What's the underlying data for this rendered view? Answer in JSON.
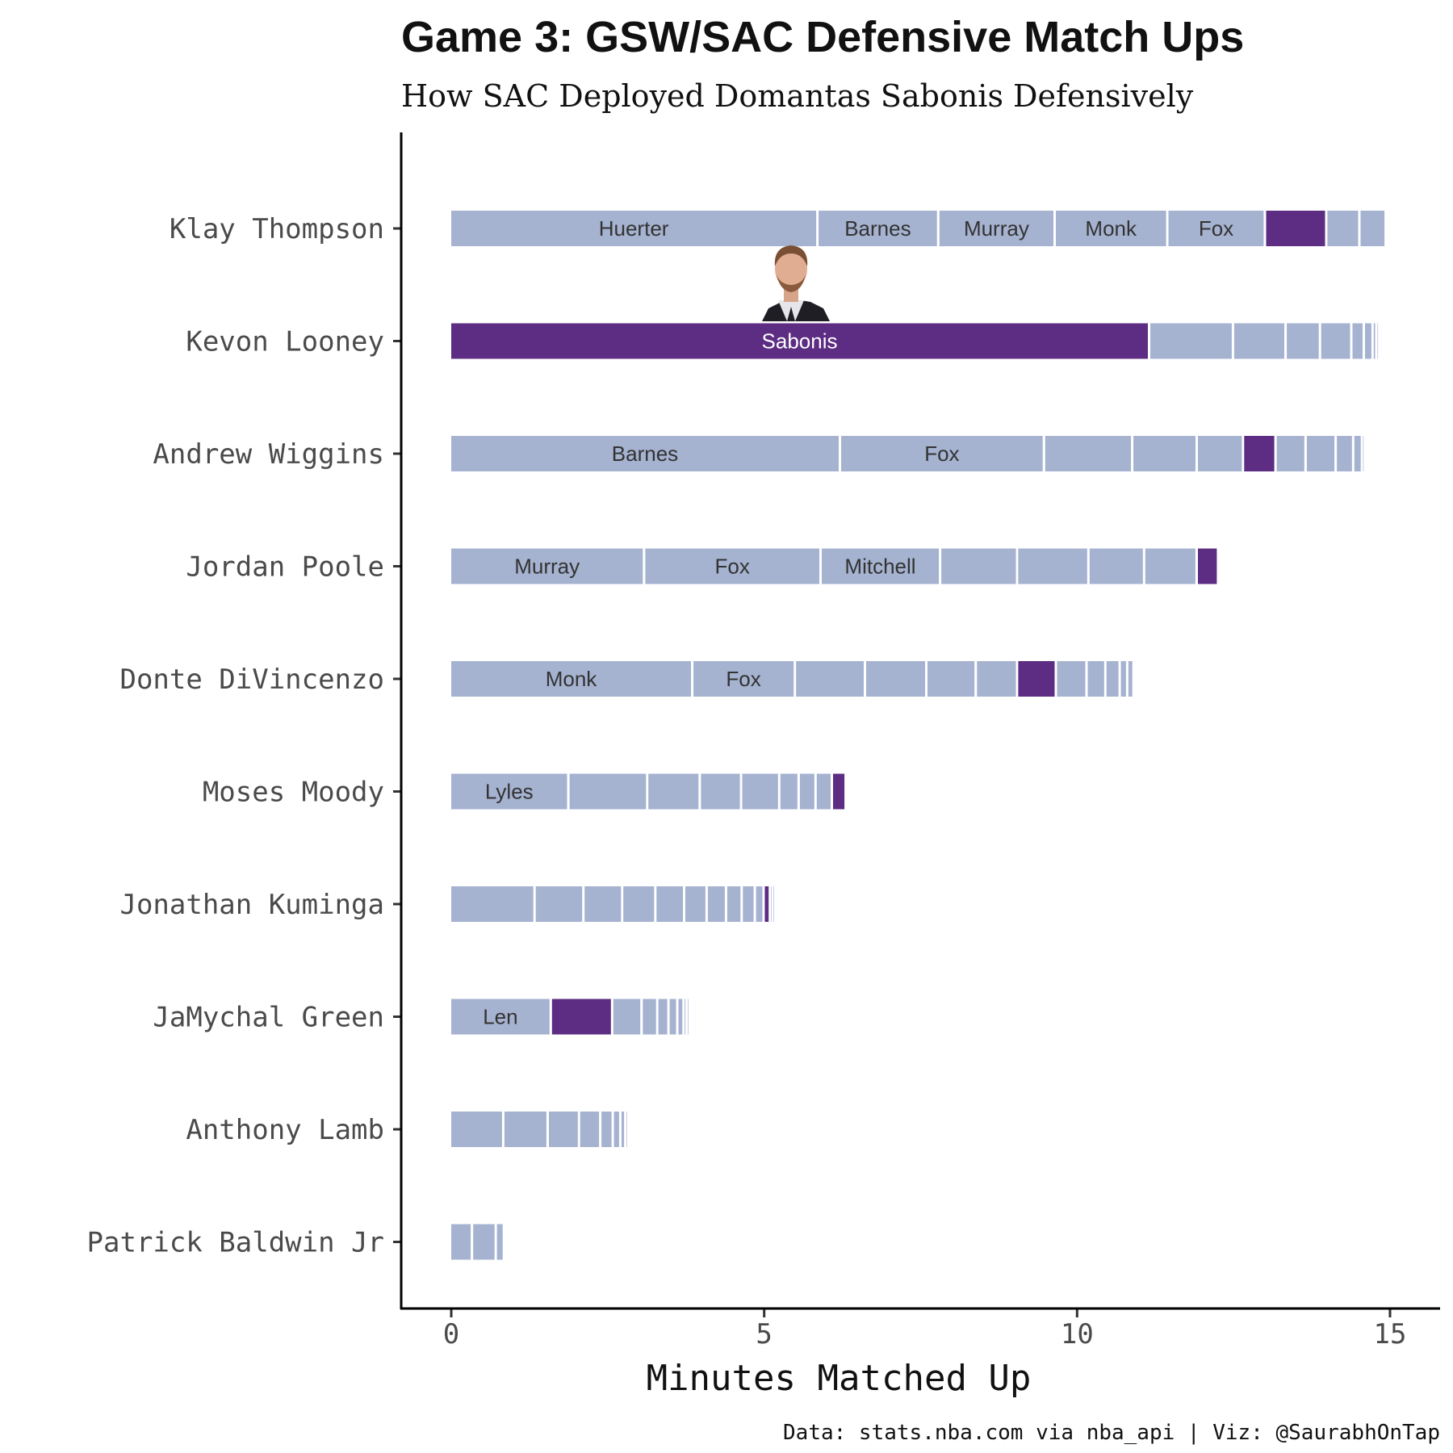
{
  "chart_data": {
    "type": "bar",
    "orientation": "horizontal",
    "stacked": true,
    "title": "Game 3: GSW/SAC Defensive Match Ups",
    "subtitle": "How SAC Deployed Domantas Sabonis Defensively",
    "xlabel": "Minutes Matched Up",
    "ylabel": "",
    "xlim": [
      -0.8,
      15.8
    ],
    "xticks": [
      0,
      5,
      10,
      15
    ],
    "caption": "Data: stats.nba.com via nba_api | Viz: @SaurabhOnTap",
    "grid": false,
    "legend": "none",
    "colors": {
      "sabonis": "#5c2d82",
      "other": "#a5b2d0",
      "label_dark": "#333333",
      "label_light": "#ffffff"
    },
    "highlight_image": "sabonis-headshot",
    "categories": [
      "Klay Thompson",
      "Kevon Looney",
      "Andrew Wiggins",
      "Jordan Poole",
      "Donte DiVincenzo",
      "Moses Moody",
      "Jonathan Kuminga",
      "JaMychal Green",
      "Anthony Lamb",
      "Patrick Baldwin Jr"
    ],
    "rows": [
      {
        "player": "Klay Thompson",
        "segments": [
          {
            "defender": "Huerter",
            "minutes": 5.87
          },
          {
            "defender": "Barnes",
            "minutes": 1.93
          },
          {
            "defender": "Murray",
            "minutes": 1.86
          },
          {
            "defender": "Monk",
            "minutes": 1.8
          },
          {
            "defender": "Fox",
            "minutes": 1.56
          },
          {
            "defender": "Sabonis",
            "minutes": 0.98,
            "sabonis": true,
            "show_label": false
          },
          {
            "minutes": 0.53
          },
          {
            "minutes": 0.42
          }
        ]
      },
      {
        "player": "Kevon Looney",
        "segments": [
          {
            "defender": "Sabonis",
            "minutes": 11.17,
            "sabonis": true
          },
          {
            "minutes": 1.34
          },
          {
            "minutes": 0.84
          },
          {
            "minutes": 0.55
          },
          {
            "minutes": 0.5
          },
          {
            "minutes": 0.2
          },
          {
            "minutes": 0.14
          },
          {
            "minutes": 0.06
          },
          {
            "minutes": 0.04
          }
        ]
      },
      {
        "player": "Andrew Wiggins",
        "segments": [
          {
            "defender": "Barnes",
            "minutes": 6.23
          },
          {
            "defender": "Fox",
            "minutes": 3.26
          },
          {
            "minutes": 1.41
          },
          {
            "minutes": 1.03
          },
          {
            "minutes": 0.74
          },
          {
            "defender": "Sabonis",
            "minutes": 0.52,
            "sabonis": true,
            "show_label": false
          },
          {
            "minutes": 0.48
          },
          {
            "minutes": 0.48
          },
          {
            "minutes": 0.28
          },
          {
            "minutes": 0.14
          },
          {
            "minutes": 0.04
          }
        ]
      },
      {
        "player": "Jordan Poole",
        "segments": [
          {
            "defender": "Murray",
            "minutes": 3.1
          },
          {
            "defender": "Fox",
            "minutes": 2.82
          },
          {
            "defender": "Mitchell",
            "minutes": 1.91
          },
          {
            "minutes": 1.23
          },
          {
            "minutes": 1.14
          },
          {
            "minutes": 0.89
          },
          {
            "minutes": 0.84
          },
          {
            "defender": "Sabonis",
            "minutes": 0.34,
            "sabonis": true,
            "show_label": false
          }
        ]
      },
      {
        "player": "Donte DiVincenzo",
        "segments": [
          {
            "defender": "Monk",
            "minutes": 3.87
          },
          {
            "defender": "Fox",
            "minutes": 1.64
          },
          {
            "minutes": 1.12
          },
          {
            "minutes": 0.98
          },
          {
            "minutes": 0.79
          },
          {
            "minutes": 0.66
          },
          {
            "defender": "Sabonis",
            "minutes": 0.62,
            "sabonis": true,
            "show_label": false
          },
          {
            "minutes": 0.49
          },
          {
            "minutes": 0.3
          },
          {
            "minutes": 0.23
          },
          {
            "minutes": 0.12
          },
          {
            "minutes": 0.1
          }
        ]
      },
      {
        "player": "Moses Moody",
        "segments": [
          {
            "defender": "Lyles",
            "minutes": 1.89
          },
          {
            "minutes": 1.26
          },
          {
            "minutes": 0.84
          },
          {
            "minutes": 0.66
          },
          {
            "minutes": 0.61
          },
          {
            "minutes": 0.31
          },
          {
            "minutes": 0.27
          },
          {
            "minutes": 0.26
          },
          {
            "defender": "Sabonis",
            "minutes": 0.22,
            "sabonis": true,
            "show_label": false
          }
        ]
      },
      {
        "player": "Jonathan Kuminga",
        "segments": [
          {
            "minutes": 1.35
          },
          {
            "minutes": 0.78
          },
          {
            "minutes": 0.62
          },
          {
            "minutes": 0.53
          },
          {
            "minutes": 0.46
          },
          {
            "minutes": 0.36
          },
          {
            "minutes": 0.31
          },
          {
            "minutes": 0.25
          },
          {
            "minutes": 0.21
          },
          {
            "minutes": 0.14
          },
          {
            "defender": "Sabonis",
            "minutes": 0.1,
            "sabonis": true,
            "show_label": false
          },
          {
            "minutes": 0.04
          },
          {
            "minutes": 0.02
          }
        ]
      },
      {
        "player": "JaMychal Green",
        "segments": [
          {
            "defender": "Len",
            "minutes": 1.61
          },
          {
            "defender": "Sabonis",
            "minutes": 0.98,
            "sabonis": true,
            "show_label": false
          },
          {
            "minutes": 0.47
          },
          {
            "minutes": 0.25
          },
          {
            "minutes": 0.18
          },
          {
            "minutes": 0.14
          },
          {
            "minutes": 0.1
          },
          {
            "minutes": 0.05
          },
          {
            "minutes": 0.02
          }
        ]
      },
      {
        "player": "Anthony Lamb",
        "segments": [
          {
            "minutes": 0.85
          },
          {
            "minutes": 0.71
          },
          {
            "minutes": 0.5
          },
          {
            "minutes": 0.34
          },
          {
            "minutes": 0.2
          },
          {
            "minutes": 0.12
          },
          {
            "minutes": 0.08
          },
          {
            "minutes": 0.04
          }
        ]
      },
      {
        "player": "Patrick Baldwin Jr",
        "segments": [
          {
            "minutes": 0.35
          },
          {
            "minutes": 0.38
          },
          {
            "minutes": 0.13
          }
        ]
      }
    ]
  }
}
